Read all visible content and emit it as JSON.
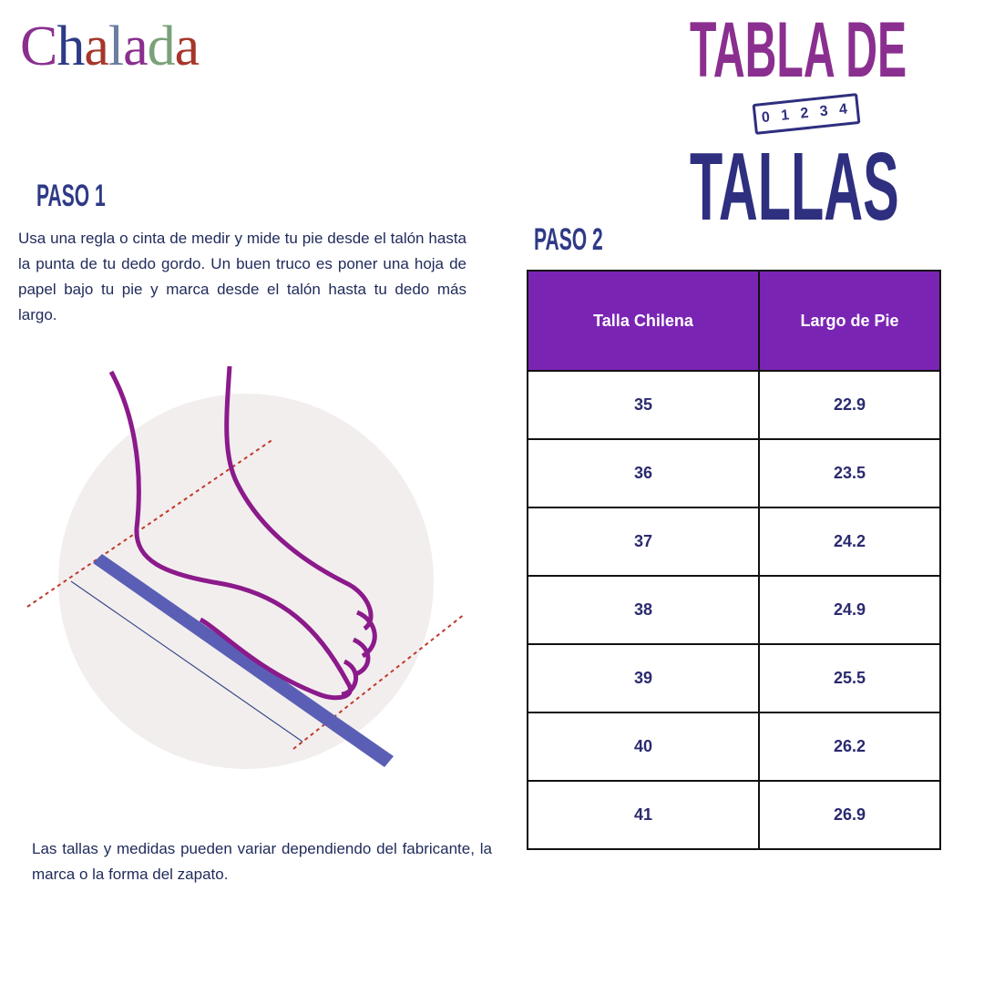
{
  "brand": {
    "logo_text": "Chalada",
    "letters": [
      {
        "ch": "C",
        "color": "#8a2f8f"
      },
      {
        "ch": "h",
        "color": "#2e3a86"
      },
      {
        "ch": "a",
        "color": "#a6362a"
      },
      {
        "ch": "l",
        "color": "#6b7ea0"
      },
      {
        "ch": "a",
        "color": "#8a2f8f"
      },
      {
        "ch": "d",
        "color": "#7aa27a"
      },
      {
        "ch": "a",
        "color": "#a6362a"
      }
    ]
  },
  "title": {
    "line1": "TABLA DE",
    "line2": "TALLAS",
    "ruler_numbers": "0 1 2 3 4"
  },
  "colors": {
    "purple": "#8a2f8f",
    "navy": "#2e2f7f",
    "header": "#7a24b4",
    "ruler": "#5a5fb5"
  },
  "step1": {
    "heading": "PASO 1",
    "text": "Usa una regla o cinta de medir y mide tu pie desde el talón hasta la punta de tu dedo gordo. Un buen truco es poner una hoja de papel bajo tu pie y marca desde el talón hasta tu dedo más largo."
  },
  "step2": {
    "heading": "PASO 2"
  },
  "table": {
    "headers": [
      "Talla Chilena",
      "Largo de Pie"
    ],
    "rows": [
      [
        "35",
        "22.9"
      ],
      [
        "36",
        "23.5"
      ],
      [
        "37",
        "24.2"
      ],
      [
        "38",
        "24.9"
      ],
      [
        "39",
        "25.5"
      ],
      [
        "40",
        "26.2"
      ],
      [
        "41",
        "26.9"
      ]
    ]
  },
  "note": "Las tallas y medidas pueden variar dependiendo del fabricante, la marca o la forma del zapato."
}
